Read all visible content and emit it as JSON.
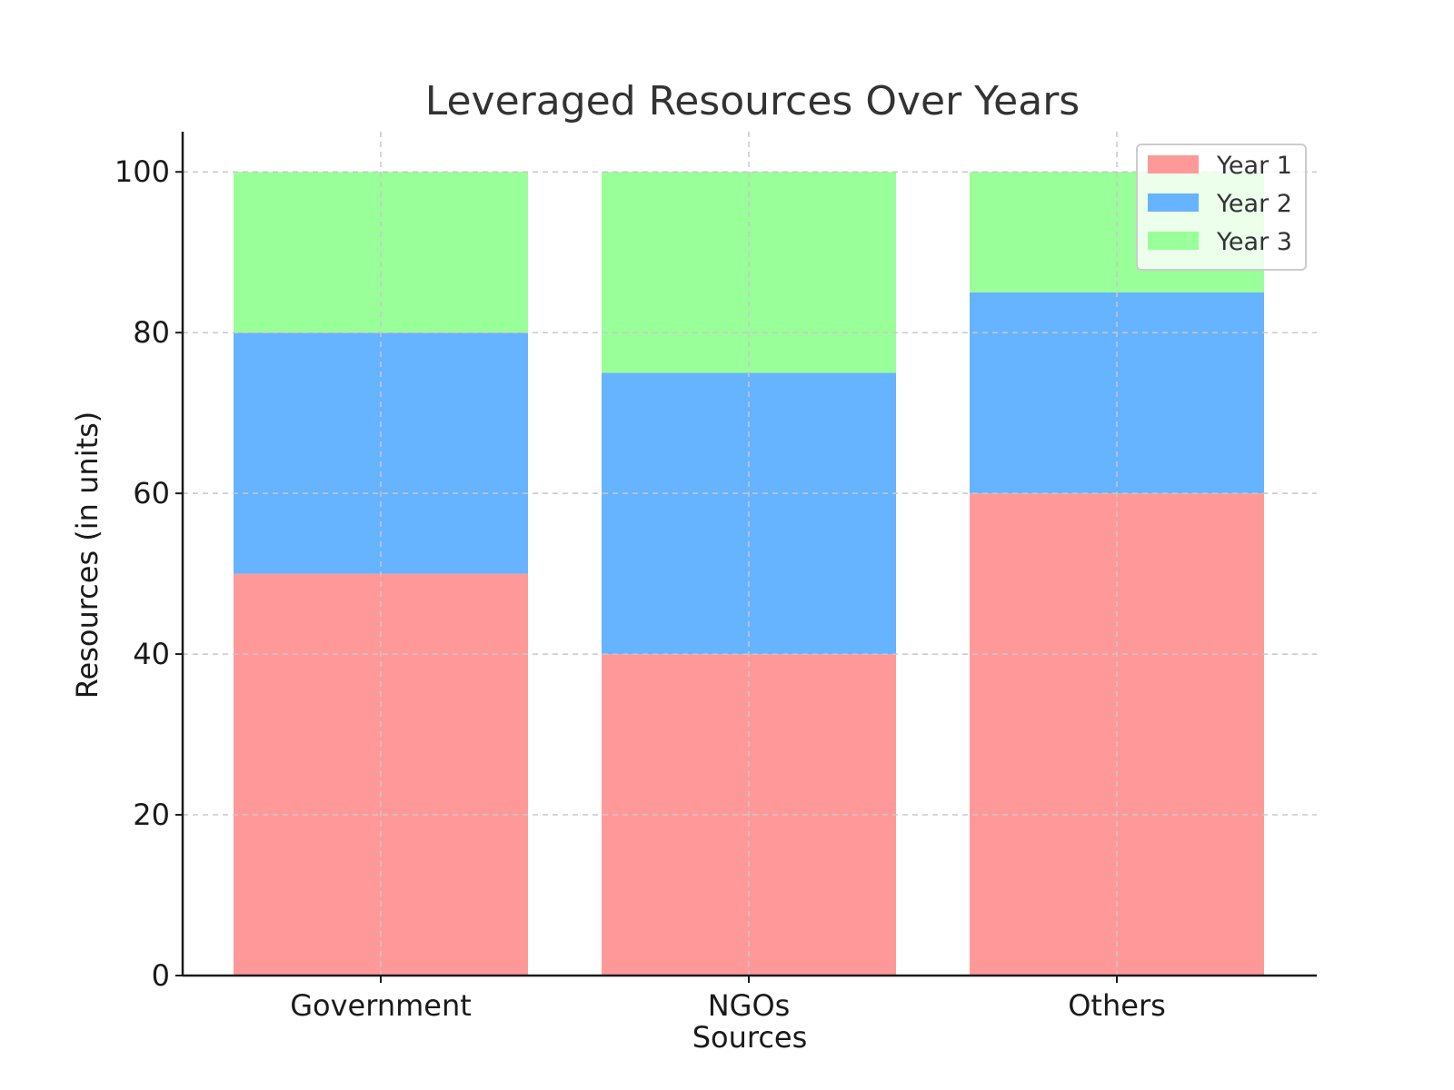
{
  "chart_data": {
    "type": "bar",
    "stacked": true,
    "title": "Leveraged Resources Over Years",
    "xlabel": "Sources",
    "ylabel": "Resources (in units)",
    "categories": [
      "Government",
      "NGOs",
      "Others"
    ],
    "series": [
      {
        "name": "Year 1",
        "values": [
          50,
          40,
          60
        ],
        "color": "#ff9999"
      },
      {
        "name": "Year 2",
        "values": [
          30,
          35,
          25
        ],
        "color": "#66b3ff"
      },
      {
        "name": "Year 3",
        "values": [
          20,
          25,
          15
        ],
        "color": "#99ff99"
      }
    ],
    "ylim": [
      0,
      105
    ],
    "yticks": [
      0,
      20,
      40,
      60,
      80,
      100
    ],
    "grid": true,
    "legend_position": "top-right"
  }
}
